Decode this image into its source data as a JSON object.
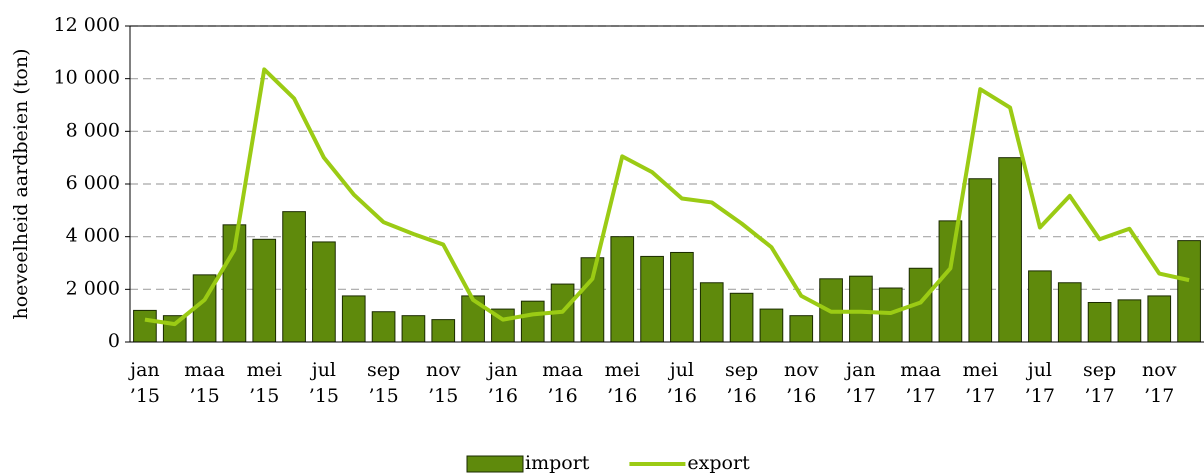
{
  "chart_data": {
    "type": "bar_line",
    "ylabel": "hoeveelheid aardbeien (ton)",
    "categories": [
      [
        "jan",
        "’15"
      ],
      null,
      [
        "maa",
        "’15"
      ],
      null,
      [
        "mei",
        "’15"
      ],
      null,
      [
        "jul",
        "’15"
      ],
      null,
      [
        "sep",
        "’15"
      ],
      null,
      [
        "nov",
        "’15"
      ],
      null,
      [
        "jan",
        "’16"
      ],
      null,
      [
        "maa",
        "’16"
      ],
      null,
      [
        "mei",
        "’16"
      ],
      null,
      [
        "jul",
        "’16"
      ],
      null,
      [
        "sep",
        "’16"
      ],
      null,
      [
        "nov",
        "’16"
      ],
      null,
      [
        "jan",
        "’17"
      ],
      null,
      [
        "maa",
        "’17"
      ],
      null,
      [
        "mei",
        "’17"
      ],
      null,
      [
        "jul",
        "’17"
      ],
      null,
      [
        "sep",
        "’17"
      ],
      null,
      [
        "nov",
        "’17"
      ],
      null
    ],
    "series": [
      {
        "name": "import",
        "kind": "bar",
        "color": "#5f8a0c",
        "values": [
          1200,
          1000,
          2550,
          4450,
          3900,
          4950,
          3800,
          1750,
          1150,
          1000,
          850,
          1750,
          1250,
          1550,
          2200,
          3200,
          4000,
          3250,
          3400,
          2250,
          1850,
          1250,
          1000,
          2400,
          2500,
          2050,
          2800,
          4600,
          6200,
          7000,
          2700,
          2250,
          1500,
          1600,
          1750,
          3850
        ]
      },
      {
        "name": "export",
        "kind": "line",
        "color": "#9bcb14",
        "values": [
          850,
          680,
          1600,
          3500,
          10350,
          9250,
          7000,
          5600,
          4550,
          4100,
          3700,
          1600,
          850,
          1050,
          1150,
          2400,
          7050,
          6450,
          5450,
          5300,
          4500,
          3600,
          1750,
          1150,
          1150,
          1100,
          1500,
          2800,
          9600,
          8900,
          4350,
          5550,
          3900,
          4300,
          2600,
          2350
        ]
      }
    ],
    "ylim": [
      0,
      12000
    ],
    "yticks": [
      0,
      {
        "value": 2000,
        "label": "2 000"
      },
      {
        "value": 4000,
        "label": "4 000"
      },
      {
        "value": 6000,
        "label": "6 000"
      },
      {
        "value": 8000,
        "label": "8 000"
      },
      {
        "value": 10000,
        "label": "10 000"
      },
      {
        "value": 12000,
        "label": "12 000"
      }
    ],
    "grid": true,
    "legend": "bottom"
  }
}
